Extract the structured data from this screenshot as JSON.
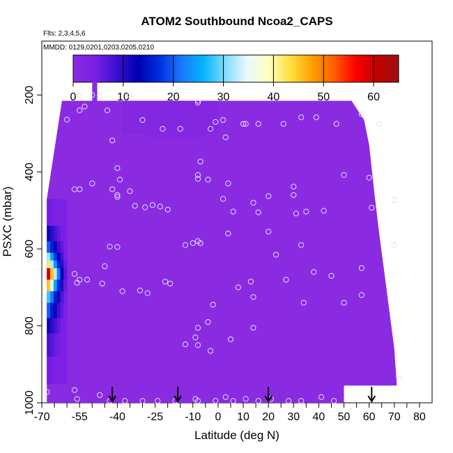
{
  "chart_data": {
    "type": "heatmap",
    "title": "ATOM2 Southbound Ncoa2_CAPS",
    "flights_label": "Flts: 2,3,4,5,6",
    "dates_label": "MMDD: 0129,0201,0203,0205,0210",
    "xlabel": "Latitude (deg N)",
    "ylabel": "PSXC (mbar)",
    "xlim": [
      -70,
      85
    ],
    "ylim": [
      1000,
      60
    ],
    "x_ticks": [
      "-70",
      "-55",
      "-40",
      "-25",
      "-10",
      "0",
      "10",
      "20",
      "30",
      "40",
      "50",
      "60",
      "70",
      "80"
    ],
    "x_tick_values": [
      -70,
      -55,
      -40,
      -25,
      -10,
      0,
      10,
      20,
      30,
      40,
      50,
      60,
      70,
      80
    ],
    "x_minor_ticks": [
      -65,
      -60,
      -50,
      -45,
      -35,
      -30,
      -20,
      -15,
      -5,
      5,
      15,
      25,
      35,
      45,
      55,
      65,
      75
    ],
    "y_ticks": [
      "200",
      "400",
      "600",
      "800",
      "1000"
    ],
    "y_tick_values": [
      200,
      400,
      600,
      800,
      1000
    ],
    "colorbar": {
      "min": 0,
      "max": 65,
      "ticks": [
        "0",
        "10",
        "20",
        "30",
        "40",
        "50",
        "60"
      ],
      "tick_values": [
        0,
        10,
        20,
        30,
        40,
        50,
        60
      ],
      "colors": [
        "#8a2be2",
        "#7b1fe6",
        "#3a10d0",
        "#0000b4",
        "#0030e0",
        "#1e78ff",
        "#00b4ff",
        "#7fdcff",
        "#e8f8ff",
        "#ffffc0",
        "#ffe040",
        "#ffa000",
        "#ff6000",
        "#ff0000",
        "#c00000",
        "#a01010"
      ]
    },
    "background_value": 3,
    "field_color": "#8a2be2",
    "column_top_pressure": [
      {
        "lat_from": -62,
        "lat_to": -50,
        "p": 215
      },
      {
        "lat_from": -50,
        "lat_to": -48,
        "p": 165
      },
      {
        "lat_from": -48,
        "lat_to": 53,
        "p": 215
      },
      {
        "lat_from": 53,
        "lat_to": 58,
        "p": 265
      }
    ],
    "bottom_edge": [
      {
        "lat": -66,
        "p": 1000
      },
      {
        "lat": 50,
        "p": 1000
      },
      {
        "lat": 50,
        "p": 955
      },
      {
        "lat": 71,
        "p": 955
      }
    ],
    "right_edge": [
      {
        "lat": 53,
        "p": 215
      },
      {
        "lat": 53,
        "p": 265
      },
      {
        "lat": 58,
        "p": 265
      },
      {
        "lat": 60,
        "p": 330
      },
      {
        "lat": 62,
        "p": 450
      },
      {
        "lat": 64,
        "p": 560
      },
      {
        "lat": 66,
        "p": 660
      },
      {
        "lat": 68,
        "p": 760
      },
      {
        "lat": 70,
        "p": 860
      },
      {
        "lat": 71,
        "p": 955
      }
    ],
    "hot_column": {
      "lat_from": -68,
      "lat_to": -60,
      "profile": [
        {
          "p": 470,
          "v": 5
        },
        {
          "p": 540,
          "v": 12
        },
        {
          "p": 580,
          "v": 20
        },
        {
          "p": 610,
          "v": 32
        },
        {
          "p": 630,
          "v": 42
        },
        {
          "p": 650,
          "v": 60
        },
        {
          "p": 680,
          "v": 45
        },
        {
          "p": 710,
          "v": 28
        },
        {
          "p": 740,
          "v": 20
        },
        {
          "p": 780,
          "v": 12
        },
        {
          "p": 820,
          "v": 8
        },
        {
          "p": 880,
          "v": 5
        },
        {
          "p": 950,
          "v": 3
        }
      ]
    },
    "sample_points": [
      [
        -60,
        264
      ],
      [
        -55,
        200
      ],
      [
        -55,
        240
      ],
      [
        -53,
        230
      ],
      [
        -50,
        200
      ],
      [
        -47,
        200
      ],
      [
        -44,
        240
      ],
      [
        -42,
        318
      ],
      [
        -40,
        390
      ],
      [
        -39,
        420
      ],
      [
        -42,
        445
      ],
      [
        -57,
        445
      ],
      [
        -55,
        445
      ],
      [
        -50,
        430
      ],
      [
        -40,
        460
      ],
      [
        -40,
        465
      ],
      [
        -35,
        450
      ],
      [
        -33,
        488
      ],
      [
        -29,
        492
      ],
      [
        -26,
        486
      ],
      [
        -23,
        490
      ],
      [
        -20,
        498
      ],
      [
        -30,
        265
      ],
      [
        -22,
        288
      ],
      [
        -15,
        288
      ],
      [
        -35,
        200
      ],
      [
        -8,
        220
      ],
      [
        -8,
        215
      ],
      [
        -3,
        288
      ],
      [
        -1,
        270
      ],
      [
        2,
        265
      ],
      [
        3,
        310
      ],
      [
        10,
        275
      ],
      [
        11,
        275
      ],
      [
        16,
        275
      ],
      [
        26,
        275
      ],
      [
        33,
        258
      ],
      [
        39,
        258
      ],
      [
        47,
        275
      ],
      [
        57,
        250
      ],
      [
        64,
        275
      ],
      [
        -7,
        373
      ],
      [
        -8,
        408
      ],
      [
        -8,
        418
      ],
      [
        -4,
        420
      ],
      [
        2,
        470
      ],
      [
        4,
        430
      ],
      [
        6,
        503
      ],
      [
        14,
        480
      ],
      [
        16,
        505
      ],
      [
        20,
        463
      ],
      [
        30,
        460
      ],
      [
        31,
        508
      ],
      [
        35,
        503
      ],
      [
        42,
        501
      ],
      [
        30,
        438
      ],
      [
        50,
        408
      ],
      [
        60,
        415
      ],
      [
        61,
        493
      ],
      [
        70,
        473
      ],
      [
        -40,
        595
      ],
      [
        -43,
        594
      ],
      [
        -45,
        645
      ],
      [
        -46,
        690
      ],
      [
        -55,
        680
      ],
      [
        -57,
        665
      ],
      [
        -56,
        688
      ],
      [
        -52,
        680
      ],
      [
        -38,
        710
      ],
      [
        -31,
        708
      ],
      [
        -28,
        715
      ],
      [
        -21,
        685
      ],
      [
        -19,
        690
      ],
      [
        -8,
        580
      ],
      [
        -7,
        585
      ],
      [
        -10,
        585
      ],
      [
        -13,
        590
      ],
      [
        4,
        560
      ],
      [
        8,
        700
      ],
      [
        13,
        685
      ],
      [
        14,
        725
      ],
      [
        20,
        555
      ],
      [
        23,
        615
      ],
      [
        27,
        680
      ],
      [
        33,
        590
      ],
      [
        34,
        740
      ],
      [
        38,
        660
      ],
      [
        45,
        670
      ],
      [
        50,
        740
      ],
      [
        57,
        650
      ],
      [
        57,
        720
      ],
      [
        70,
        590
      ],
      [
        -2,
        745
      ],
      [
        -4,
        790
      ],
      [
        -8,
        805
      ],
      [
        -9,
        830
      ],
      [
        -8,
        850
      ],
      [
        -13,
        848
      ],
      [
        -3,
        865
      ],
      [
        5,
        835
      ],
      [
        14,
        805
      ],
      [
        -57,
        967
      ],
      [
        -56,
        990
      ],
      [
        -47,
        980
      ],
      [
        -43,
        995
      ],
      [
        -37,
        995
      ],
      [
        -30,
        995
      ],
      [
        -24,
        995
      ],
      [
        -17,
        995
      ],
      [
        -9,
        990
      ],
      [
        -8,
        995
      ],
      [
        -1,
        995
      ],
      [
        3,
        985
      ],
      [
        6,
        995
      ],
      [
        11,
        990
      ],
      [
        16,
        995
      ],
      [
        21,
        990
      ],
      [
        28,
        995
      ],
      [
        33,
        995
      ],
      [
        41,
        985
      ],
      [
        46,
        995
      ],
      [
        72,
        938
      ],
      [
        -68,
        972
      ]
    ],
    "arrows_lat": [
      -42,
      -16,
      20,
      61
    ]
  }
}
